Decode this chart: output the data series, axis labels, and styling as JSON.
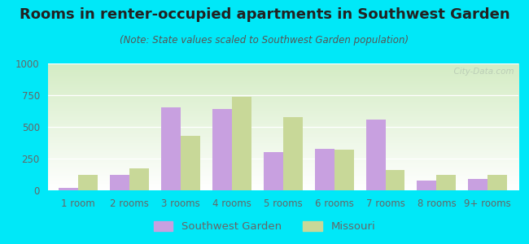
{
  "title": "Rooms in renter-occupied apartments in Southwest Garden",
  "subtitle": "(Note: State values scaled to Southwest Garden population)",
  "categories": [
    "1 room",
    "2 rooms",
    "3 rooms",
    "4 rooms",
    "5 rooms",
    "6 rooms",
    "7 rooms",
    "8 rooms",
    "9+ rooms"
  ],
  "southwest_garden": [
    20,
    120,
    655,
    640,
    300,
    330,
    555,
    75,
    90
  ],
  "missouri": [
    125,
    175,
    430,
    740,
    580,
    320,
    160,
    120,
    125
  ],
  "sw_color": "#c8a0e0",
  "mo_color": "#c8d898",
  "background_outer": "#00e8f8",
  "grad_top": "#d4ecc4",
  "grad_bottom": "#ffffff",
  "ylim": [
    0,
    1000
  ],
  "yticks": [
    0,
    250,
    500,
    750,
    1000
  ],
  "legend_sw": "Southwest Garden",
  "legend_mo": "Missouri",
  "title_fontsize": 13,
  "subtitle_fontsize": 8.5,
  "tick_fontsize": 8.5,
  "legend_fontsize": 9.5,
  "bar_width": 0.38,
  "title_color": "#222222",
  "subtitle_color": "#555555",
  "tick_color": "#666666",
  "watermark_text": "  City-Data.com",
  "watermark_color": "#b0c0b0",
  "watermark_alpha": 0.7
}
